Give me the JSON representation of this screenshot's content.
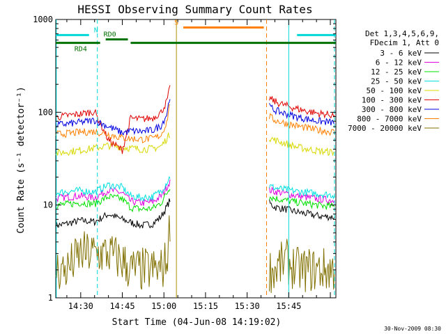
{
  "chart_data": {
    "type": "line",
    "title": "HESSI Observing Summary Count Rates",
    "xlabel": "Start Time (04-Jun-08 14:19:02)",
    "ylabel": "Count Rate (s⁻¹ detector⁻¹)",
    "yscale": "log",
    "xlim_min": [
      21,
      122
    ],
    "ylim": [
      1,
      1000
    ],
    "x_tick_labels": [
      {
        "label": "14:30",
        "x": 30
      },
      {
        "label": "14:45",
        "x": 45
      },
      {
        "label": "15:00",
        "x": 60
      },
      {
        "label": "15:15",
        "x": 75
      },
      {
        "label": "15:30",
        "x": 90
      },
      {
        "label": "15:45",
        "x": 105
      }
    ],
    "y_tick_labels": [
      {
        "label": "1",
        "y": 1
      },
      {
        "label": "10",
        "y": 10
      },
      {
        "label": "100",
        "y": 100
      },
      {
        "label": "1000",
        "y": 1000
      }
    ],
    "legend_header": [
      "Det 1,3,4,5,6,9,",
      "FDecim 1, Att 0"
    ],
    "legend_position": "right",
    "date_stamp": "30-Nov-2009 08:30",
    "flag_bars": [
      {
        "label": "N",
        "color": "#00d8d8",
        "level": 680,
        "segments": [
          [
            21,
            33
          ],
          [
            108,
            122
          ]
        ],
        "label_x": 35.5
      },
      {
        "label": "RD0",
        "color": "#007000",
        "level": 610,
        "segments": [
          [
            39,
            47
          ]
        ],
        "label_x": 40.5
      },
      {
        "label": "RD4",
        "color": "#007000",
        "level": 560,
        "segments": [
          [
            21,
            37
          ],
          [
            48,
            122
          ]
        ],
        "label_x": 30
      },
      {
        "label": "S",
        "color": "#ff8000",
        "level": 820,
        "segments": [
          [
            67,
            96
          ]
        ],
        "label_x": 64.5
      }
    ],
    "vlines": [
      {
        "x": 21.2,
        "color": "#00d8d8",
        "dash": false
      },
      {
        "x": 36,
        "color": "#00d8d8",
        "dash": true
      },
      {
        "x": 64.5,
        "color": "#b09000",
        "dash": false
      },
      {
        "x": 97,
        "color": "#ff8000",
        "dash": true
      },
      {
        "x": 105,
        "color": "#00d8d8",
        "dash": false
      },
      {
        "x": 121.5,
        "color": "#00d8d8",
        "dash": true
      }
    ],
    "series": [
      {
        "name": "3 - 6 keV",
        "color": "#000000",
        "x": [
          21,
          25,
          30,
          35,
          40,
          45,
          48,
          52,
          56,
          59,
          61,
          62.5,
          98,
          100,
          104,
          108,
          112,
          116,
          121.5
        ],
        "y": [
          6,
          6.3,
          6.8,
          6.6,
          8,
          7,
          6.5,
          6,
          6.3,
          7.5,
          9.5,
          12,
          10.5,
          9.5,
          9,
          8.4,
          8,
          7.6,
          7.4
        ]
      },
      {
        "name": "6 - 12 keV",
        "color": "#e000e0",
        "x": [
          21,
          25,
          30,
          35,
          40,
          45,
          48,
          52,
          56,
          59,
          61,
          62.5,
          98,
          100,
          104,
          108,
          112,
          116,
          121.5
        ],
        "y": [
          11.8,
          12.2,
          12.5,
          12,
          14.5,
          13.5,
          11,
          10.5,
          10.8,
          12.5,
          15.5,
          19,
          14.5,
          14,
          13.3,
          12.6,
          12,
          11.6,
          11.2
        ]
      },
      {
        "name": "12 - 25 keV",
        "color": "#00e000",
        "x": [
          21,
          25,
          30,
          35,
          40,
          45,
          48,
          52,
          56,
          59,
          61,
          62.5,
          98,
          100,
          104,
          108,
          112,
          116,
          121.5
        ],
        "y": [
          10,
          10.2,
          10.6,
          10.3,
          12.3,
          11.6,
          9.4,
          9,
          9.2,
          10.6,
          13.3,
          16.5,
          12.3,
          11.8,
          11.2,
          10.7,
          10.3,
          9.9,
          9.6
        ]
      },
      {
        "name": "25 - 50 keV",
        "color": "#00e0e0",
        "x": [
          21,
          25,
          30,
          35,
          40,
          45,
          48,
          52,
          56,
          59,
          61,
          62.5,
          98,
          100,
          104,
          108,
          112,
          116,
          121.5
        ],
        "y": [
          13.5,
          14,
          14.3,
          13.8,
          16.5,
          15.5,
          12.5,
          12,
          12.3,
          14.2,
          17.5,
          21,
          16,
          15.3,
          14.6,
          14,
          13.6,
          13.2,
          12.8
        ]
      },
      {
        "name": "50 - 100 keV",
        "color": "#d8d800",
        "x": [
          21,
          25,
          30,
          35,
          40,
          45,
          48,
          52,
          56,
          59,
          61,
          62.5,
          98,
          100,
          104,
          108,
          112,
          116,
          121.5
        ],
        "y": [
          36,
          37.5,
          39,
          41,
          44,
          42,
          41,
          40,
          40.5,
          43,
          52,
          60,
          53,
          50,
          46,
          42,
          40,
          38,
          37
        ]
      },
      {
        "name": "100 - 300 keV",
        "color": "#e00000",
        "x": [
          21,
          25,
          30,
          35,
          40,
          45,
          48,
          52,
          56,
          59,
          61,
          62.5,
          98,
          100,
          104,
          108,
          112,
          116,
          121.5
        ],
        "y": [
          88,
          92,
          96,
          102,
          50,
          39,
          86,
          84,
          87,
          100,
          130,
          200,
          142,
          130,
          118,
          109,
          102,
          97,
          93
        ]
      },
      {
        "name": "300 - 800 keV",
        "color": "#0000e0",
        "x": [
          21,
          25,
          30,
          35,
          40,
          45,
          48,
          52,
          56,
          59,
          61,
          62.5,
          98,
          100,
          104,
          108,
          112,
          116,
          121.5
        ],
        "y": [
          73,
          75,
          78,
          82,
          70,
          60,
          63,
          62,
          64,
          72,
          95,
          170,
          115,
          105,
          96,
          89,
          84,
          80,
          77
        ]
      },
      {
        "name": "800 - 7000 keV",
        "color": "#ff8000",
        "x": [
          21,
          25,
          30,
          35,
          40,
          45,
          48,
          52,
          56,
          59,
          61,
          62.5,
          98,
          100,
          104,
          108,
          112,
          116,
          121.5
        ],
        "y": [
          58,
          59,
          61,
          62,
          58,
          53,
          52,
          51,
          52,
          57,
          78,
          145,
          90,
          82,
          76,
          71,
          67,
          64,
          61
        ]
      },
      {
        "name": "7000 - 20000 keV",
        "color": "#807000",
        "x": [
          21,
          25,
          30,
          35,
          40,
          45,
          48,
          52,
          56,
          59,
          61,
          62.5,
          98,
          100,
          104,
          108,
          112,
          116,
          121.5
        ],
        "y": [
          2,
          2,
          3,
          3,
          3,
          2.5,
          2,
          2,
          2,
          2,
          2.5,
          8,
          2,
          2,
          2.5,
          2,
          2,
          2,
          2
        ]
      }
    ]
  }
}
